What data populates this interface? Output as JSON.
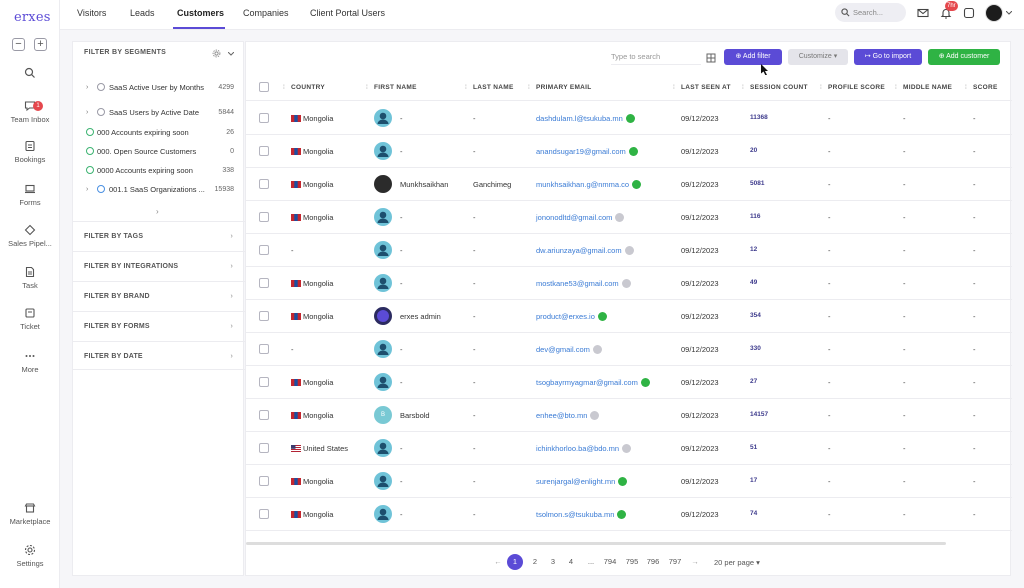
{
  "app": {
    "logo": "erxes"
  },
  "left_nav": [
    {
      "label": "Team Inbox",
      "icon": "chat-icon",
      "badge": "1"
    },
    {
      "label": "Bookings",
      "icon": "bookings-icon"
    },
    {
      "label": "Forms",
      "icon": "forms-icon"
    },
    {
      "label": "Sales Pipel...",
      "icon": "pipeline-icon"
    },
    {
      "label": "Task",
      "icon": "task-icon"
    },
    {
      "label": "Ticket",
      "icon": "ticket-icon"
    },
    {
      "label": "More",
      "icon": "more-icon"
    },
    {
      "label": "Marketplace",
      "icon": "marketplace-icon"
    },
    {
      "label": "Settings",
      "icon": "settings-icon"
    }
  ],
  "top_tabs": [
    "Visitors",
    "Leads",
    "Customers",
    "Companies",
    "Client Portal Users"
  ],
  "top_active_tab": "Customers",
  "top_search": {
    "placeholder": "Search..."
  },
  "notifications_badge": "7hr",
  "filter_panel": {
    "segments_title": "FILTER BY SEGMENTS",
    "segments": [
      {
        "label": "SaaS Active User by Months",
        "count": "4299"
      },
      {
        "label": "SaaS Users by Active Date",
        "count": "5844"
      },
      {
        "label": "000 Accounts expiring soon",
        "count": "26"
      },
      {
        "label": "000. Open Source Customers",
        "count": "0"
      },
      {
        "label": "0000 Accounts expiring soon",
        "count": "338"
      },
      {
        "label": "001.1 SaaS Organizations ...",
        "count": "15938"
      }
    ],
    "sections": [
      "FILTER BY TAGS",
      "FILTER BY INTEGRATIONS",
      "FILTER BY BRAND",
      "FILTER BY FORMS",
      "FILTER BY DATE"
    ]
  },
  "toolbar": {
    "search_placeholder": "Type to search",
    "add_filter": "Add filter",
    "customize": "Customize",
    "go_to_import": "Go to import",
    "add_customer": "Add customer"
  },
  "columns": [
    "COUNTRY",
    "FIRST NAME",
    "LAST NAME",
    "PRIMARY EMAIL",
    "LAST SEEN AT",
    "SESSION COUNT",
    "PROFILE SCORE",
    "MIDDLE NAME",
    "SCORE"
  ],
  "rows": [
    {
      "country": "Mongolia",
      "first": "-",
      "last": "-",
      "email": "dashdulam.l@tsukuba.mn",
      "verified": true,
      "seen": "09/12/2023",
      "sessions": "11368",
      "profile": "-",
      "middle": "-",
      "score": "-"
    },
    {
      "country": "Mongolia",
      "first": "-",
      "last": "-",
      "email": "anandsugar19@gmail.com",
      "verified": true,
      "seen": "09/12/2023",
      "sessions": "20",
      "profile": "-",
      "middle": "-",
      "score": "-"
    },
    {
      "country": "Mongolia",
      "first": "Munkhsaikhan",
      "last": "Ganchimeg",
      "email": "munkhsaikhan.g@nmma.co",
      "verified": true,
      "seen": "09/12/2023",
      "sessions": "5081",
      "profile": "-",
      "middle": "-",
      "score": "-"
    },
    {
      "country": "Mongolia",
      "first": "-",
      "last": "-",
      "email": "jononodltd@gmail.com",
      "verified": false,
      "seen": "09/12/2023",
      "sessions": "116",
      "profile": "-",
      "middle": "-",
      "score": "-"
    },
    {
      "country": "-",
      "first": "-",
      "last": "-",
      "email": "dw.ariunzaya@gmail.com",
      "verified": false,
      "seen": "09/12/2023",
      "sessions": "12",
      "profile": "-",
      "middle": "-",
      "score": "-"
    },
    {
      "country": "Mongolia",
      "first": "-",
      "last": "-",
      "email": "mostkane53@gmail.com",
      "verified": false,
      "seen": "09/12/2023",
      "sessions": "49",
      "profile": "-",
      "middle": "-",
      "score": "-"
    },
    {
      "country": "Mongolia",
      "first": "erxes admin",
      "last": "-",
      "email": "product@erxes.io",
      "verified": true,
      "seen": "09/12/2023",
      "sessions": "354",
      "profile": "-",
      "middle": "-",
      "score": "-"
    },
    {
      "country": "-",
      "first": "-",
      "last": "-",
      "email": "dev@gmail.com",
      "verified": false,
      "seen": "09/12/2023",
      "sessions": "330",
      "profile": "-",
      "middle": "-",
      "score": "-"
    },
    {
      "country": "Mongolia",
      "first": "-",
      "last": "-",
      "email": "tsogbayrmyagmar@gmail.com",
      "verified": true,
      "seen": "09/12/2023",
      "sessions": "27",
      "profile": "-",
      "middle": "-",
      "score": "-"
    },
    {
      "country": "Mongolia",
      "first": "Barsbold",
      "last": "-",
      "email": "enhee@bto.mn",
      "verified": false,
      "seen": "09/12/2023",
      "sessions": "14157",
      "profile": "-",
      "middle": "-",
      "score": "-"
    },
    {
      "country": "United States",
      "first": "-",
      "last": "-",
      "email": "ichinkhorloo.ba@bdo.mn",
      "verified": false,
      "seen": "09/12/2023",
      "sessions": "51",
      "profile": "-",
      "middle": "-",
      "score": "-"
    },
    {
      "country": "Mongolia",
      "first": "-",
      "last": "-",
      "email": "surenjargal@enlight.mn",
      "verified": true,
      "seen": "09/12/2023",
      "sessions": "17",
      "profile": "-",
      "middle": "-",
      "score": "-"
    },
    {
      "country": "Mongolia",
      "first": "-",
      "last": "-",
      "email": "tsolmon.s@tsukuba.mn",
      "verified": true,
      "seen": "09/12/2023",
      "sessions": "74",
      "profile": "-",
      "middle": "-",
      "score": "-"
    }
  ],
  "pagination": {
    "pages": [
      "1",
      "2",
      "3",
      "4",
      "...",
      "794",
      "795",
      "796",
      "797"
    ],
    "current": "1",
    "per_page": "20 per page"
  },
  "colors": {
    "accent": "#5b4bd6",
    "green": "#2fb344",
    "link": "#3a7bd5"
  }
}
